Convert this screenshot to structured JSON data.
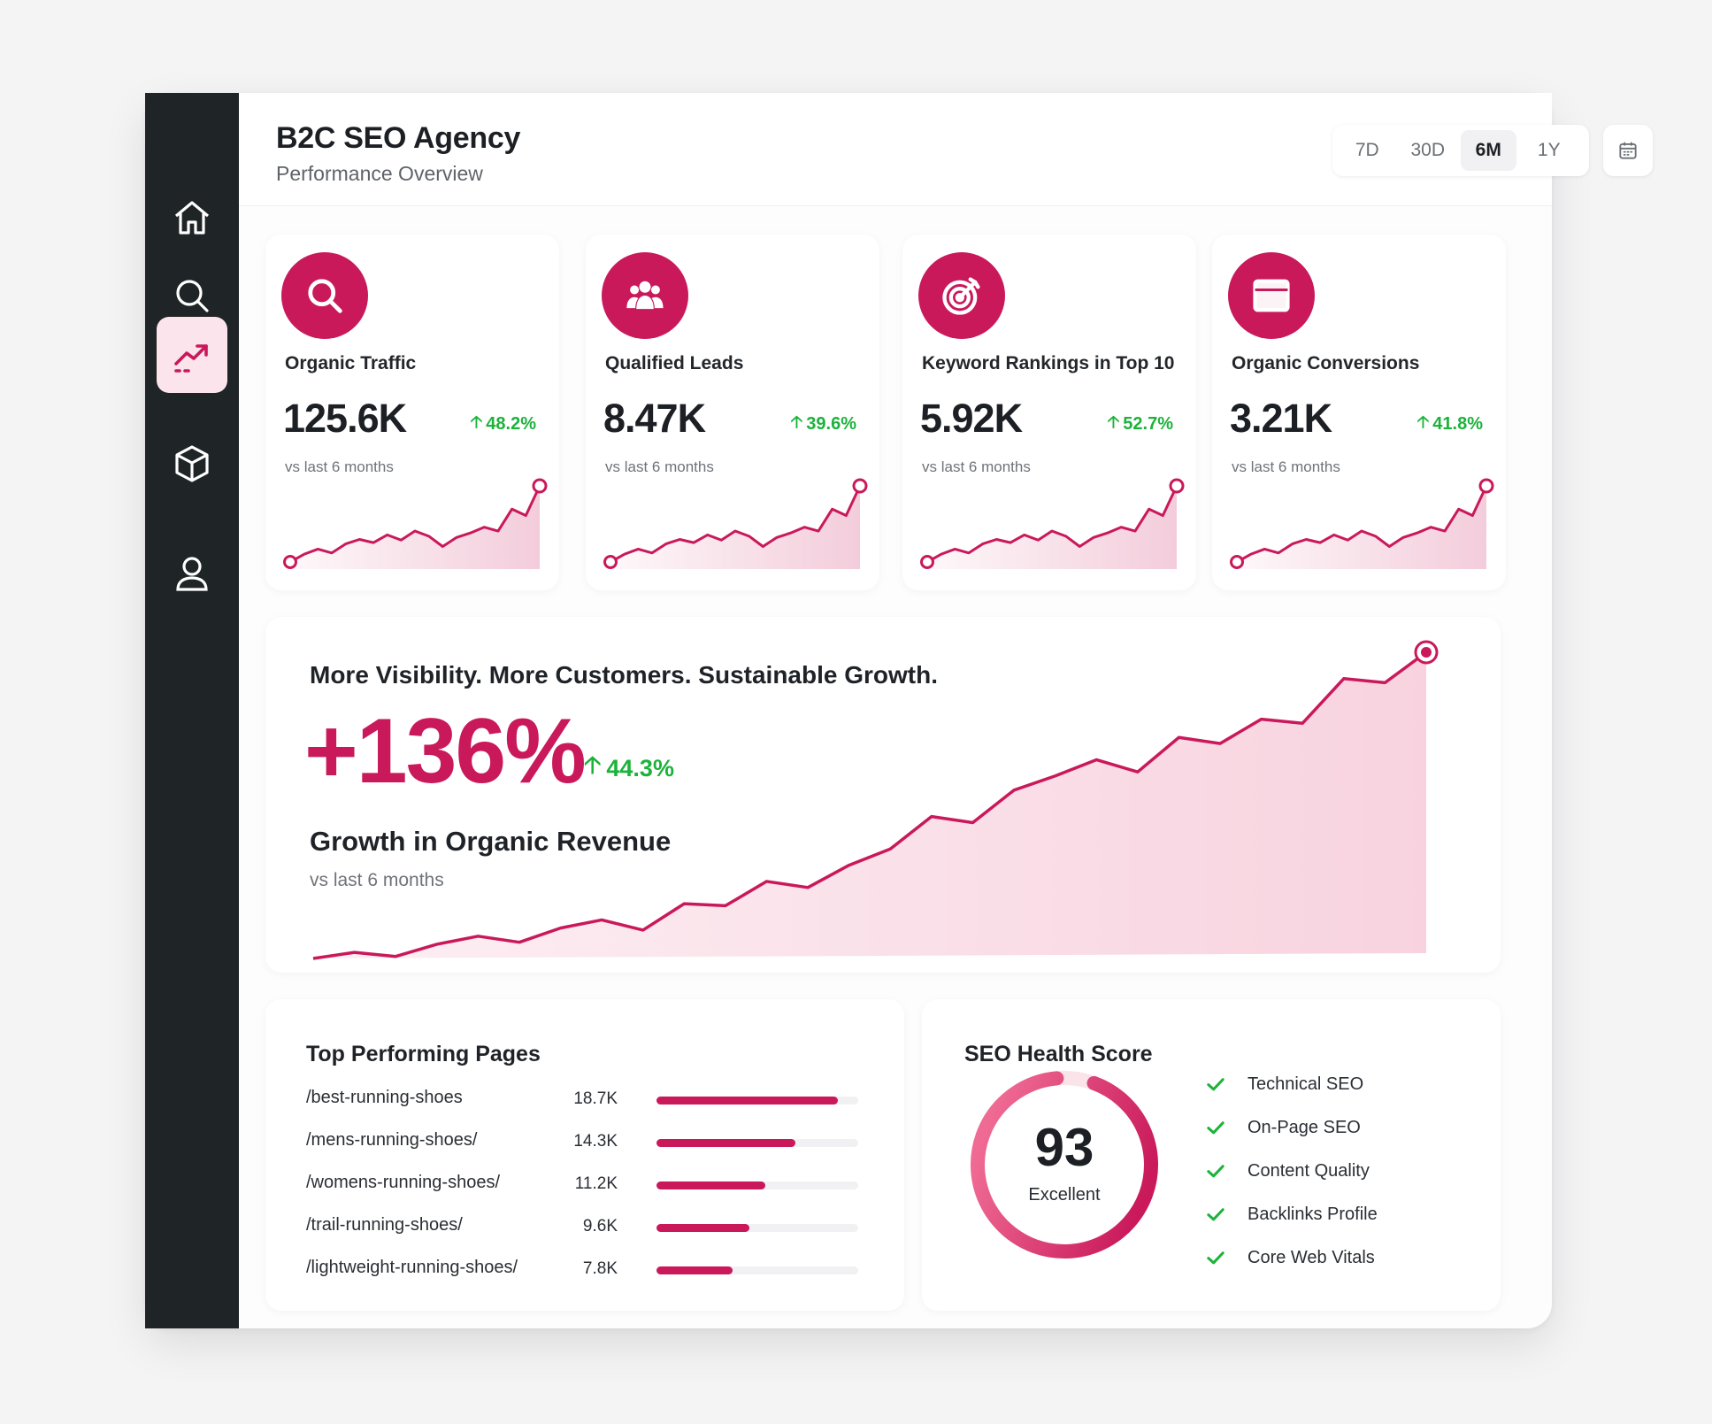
{
  "header": {
    "title": "B2C SEO Agency",
    "subtitle": "Performance Overview",
    "ranges": [
      "7D",
      "30D",
      "6M",
      "1Y"
    ],
    "active_range": "6M"
  },
  "sidebar": {
    "items": [
      {
        "name": "home",
        "icon": "home-icon"
      },
      {
        "name": "search",
        "icon": "search-icon"
      },
      {
        "name": "analytics",
        "icon": "trending-up-icon",
        "active": true
      },
      {
        "name": "products",
        "icon": "box-icon"
      },
      {
        "name": "profile",
        "icon": "user-icon"
      }
    ]
  },
  "kpis": [
    {
      "label": "Organic Traffic",
      "value": "125.6K",
      "delta": "48.2%",
      "comparison": "vs last 6 months",
      "icon": "search-icon",
      "spark": [
        10,
        22,
        30,
        24,
        38,
        45,
        40,
        52,
        44,
        58,
        50,
        34,
        48,
        55,
        64,
        58,
        92,
        82,
        128
      ]
    },
    {
      "label": "Qualified Leads",
      "value": "8.47K",
      "delta": "39.6%",
      "comparison": "vs last 6 months",
      "icon": "users-icon",
      "spark": [
        10,
        22,
        30,
        24,
        38,
        45,
        40,
        52,
        44,
        58,
        50,
        34,
        48,
        55,
        64,
        58,
        92,
        82,
        128
      ]
    },
    {
      "label": "Keyword Rankings in Top 10",
      "value": "5.92K",
      "delta": "52.7%",
      "comparison": "vs last 6 months",
      "icon": "target-icon",
      "spark": [
        10,
        22,
        30,
        24,
        38,
        45,
        40,
        52,
        44,
        58,
        50,
        34,
        48,
        55,
        64,
        58,
        92,
        82,
        128
      ]
    },
    {
      "label": "Organic Conversions",
      "value": "3.21K",
      "delta": "41.8%",
      "comparison": "vs last 6 months",
      "icon": "browser-window-icon",
      "spark": [
        10,
        22,
        30,
        24,
        38,
        45,
        40,
        52,
        44,
        58,
        50,
        34,
        48,
        55,
        64,
        58,
        92,
        82,
        128
      ]
    }
  ],
  "growth": {
    "headline": "More Visibility. More Customers. Sustainable Growth.",
    "value": "+136%",
    "delta": "44.3%",
    "title": "Growth in Organic Revenue",
    "comparison": "vs last 6 months"
  },
  "chart_data": {
    "type": "area",
    "values": [
      0,
      6,
      2,
      14,
      22,
      16,
      30,
      38,
      28,
      54,
      52,
      76,
      70,
      92,
      108,
      140,
      134,
      166,
      180,
      196,
      184,
      218,
      212,
      236,
      232,
      276,
      272,
      302
    ]
  },
  "top_pages": {
    "title": "Top Performing Pages",
    "max_value": 18.7,
    "rows": [
      {
        "path": "/best-running-shoes",
        "value": "18.7K",
        "num": 18.7
      },
      {
        "path": "/mens-running-shoes/",
        "value": "14.3K",
        "num": 14.3
      },
      {
        "path": "/womens-running-shoes/",
        "value": "11.2K",
        "num": 11.2
      },
      {
        "path": "/trail-running-shoes/",
        "value": "9.6K",
        "num": 9.6
      },
      {
        "path": "/lightweight-running-shoes/",
        "value": "7.8K",
        "num": 7.8
      }
    ]
  },
  "health": {
    "title": "SEO Health Score",
    "score": "93",
    "score_num": 93,
    "score_label": "Excellent",
    "checks": [
      "Technical SEO",
      "On-Page SEO",
      "Content Quality",
      "Backlinks Profile",
      "Core Web Vitals"
    ]
  },
  "colors": {
    "accent": "#c9195a",
    "accent_light": "#f8d3df",
    "positive": "#1bb33a",
    "sidebar": "#1f2426"
  }
}
